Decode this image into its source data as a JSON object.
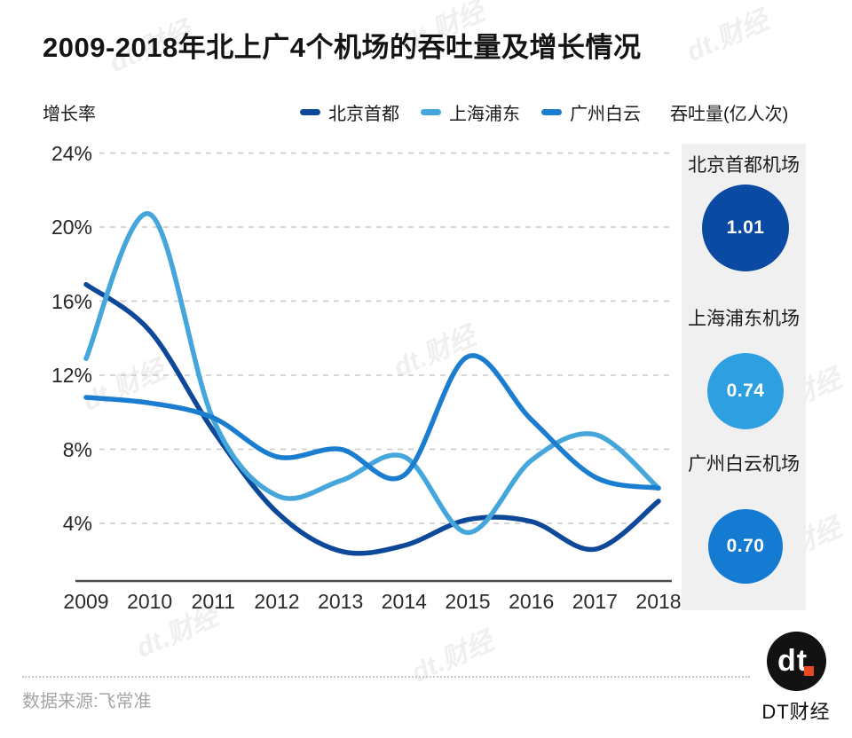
{
  "title": "2009-2018年北上广4个机场的吞吐量及增长情况",
  "watermark": "dt.财经",
  "y_axis_caption": "增长率",
  "right_axis_caption": "吞吐量(亿人次)",
  "legend": [
    {
      "label": "北京首都",
      "color": "#0e4898"
    },
    {
      "label": "上海浦东",
      "color": "#45a6db"
    },
    {
      "label": "广州白云",
      "color": "#1b7dd0"
    }
  ],
  "chart_data": {
    "type": "line",
    "x": [
      2009,
      2010,
      2011,
      2012,
      2013,
      2014,
      2015,
      2016,
      2017,
      2018
    ],
    "y_ticks": [
      "24%",
      "20%",
      "16%",
      "12%",
      "8%",
      "4%"
    ],
    "y_tick_values": [
      24,
      20,
      16,
      12,
      8,
      4
    ],
    "ylabel": "增长率",
    "right_label": "吞吐量(亿人次)",
    "ylim": [
      0.9,
      26
    ],
    "grid": true,
    "legend_position": "top",
    "series": [
      {
        "name": "北京首都",
        "color": "#0e4898",
        "values": [
          16.9,
          14.4,
          9.0,
          4.6,
          2.5,
          2.8,
          4.2,
          4.1,
          2.6,
          5.2
        ]
      },
      {
        "name": "上海浦东",
        "color": "#45a6db",
        "values": [
          12.9,
          20.7,
          9.6,
          5.5,
          6.3,
          7.6,
          3.5,
          7.4,
          8.8,
          5.9
        ]
      },
      {
        "name": "广州白云",
        "color": "#1b7dd0",
        "values": [
          10.8,
          10.5,
          9.7,
          7.6,
          8.0,
          6.6,
          13.0,
          9.6,
          6.5,
          5.9
        ]
      }
    ]
  },
  "throughput_cards": [
    {
      "airport": "北京首都机场",
      "value": "1.01",
      "color": "#0b4aa2",
      "diameter": 98
    },
    {
      "airport": "上海浦东机场",
      "value": "0.74",
      "color": "#2e9fe0",
      "diameter": 86
    },
    {
      "airport": "广州白云机场",
      "value": "0.70",
      "color": "#147ad2",
      "diameter": 84
    }
  ],
  "footer": {
    "source": "数据来源:飞常准",
    "logo_text": "dt",
    "brand_name": "DT财经"
  }
}
